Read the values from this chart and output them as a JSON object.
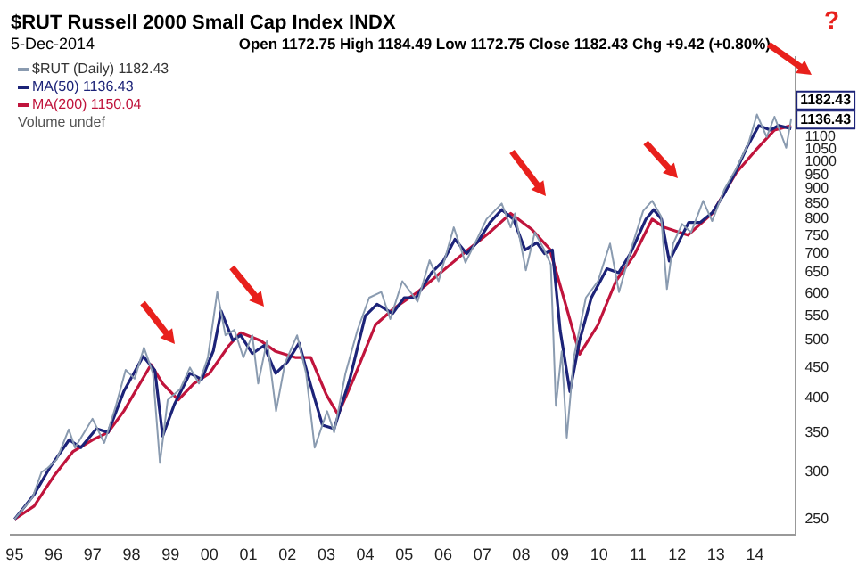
{
  "chart_data": {
    "type": "line",
    "title": "$RUT Russell 2000 Small Cap Index INDX",
    "subtitle": "5-Dec-2014",
    "annotations": [
      "Open 1172.75 High 1184.49 Low 1172.75 Close 1182.43 Chg +9.42 (+0.80%)",
      "?",
      "Volume undef",
      {
        "text": "1182.43",
        "x": 2014.93,
        "y": 1182.43
      },
      {
        "text": "1136.43",
        "x": 2014.93,
        "y": 1136.43
      }
    ],
    "series": [
      {
        "name": "$RUT (Daily) 1182.43",
        "color": "#8a9bb0",
        "x": [
          1995.0,
          1995.46,
          1995.69,
          1995.85,
          1996.08,
          1996.39,
          1996.55,
          1997.0,
          1997.3,
          1997.6,
          1997.85,
          1998.08,
          1998.32,
          1998.55,
          1998.73,
          1998.93,
          1999.25,
          1999.5,
          1999.73,
          1999.96,
          2000.2,
          2000.41,
          2000.64,
          2000.87,
          2001.1,
          2001.25,
          2001.48,
          2001.71,
          2001.94,
          2002.25,
          2002.48,
          2002.7,
          2003.02,
          2003.2,
          2003.49,
          2003.8,
          2004.1,
          2004.41,
          2004.64,
          2004.95,
          2005.34,
          2005.65,
          2005.88,
          2006.27,
          2006.57,
          2006.88,
          2007.11,
          2007.5,
          2007.73,
          2007.84,
          2008.12,
          2008.35,
          2008.58,
          2008.76,
          2008.89,
          2009.04,
          2009.17,
          2009.35,
          2009.66,
          2009.97,
          2010.28,
          2010.51,
          2010.82,
          2011.13,
          2011.36,
          2011.59,
          2011.74,
          2011.9,
          2012.13,
          2012.36,
          2012.67,
          2012.9,
          2013.21,
          2013.52,
          2013.83,
          2014.05,
          2014.3,
          2014.5,
          2014.8,
          2014.93
        ],
        "values": [
          250,
          272,
          300,
          305,
          315,
          354,
          330,
          369,
          336,
          388,
          446,
          431,
          486,
          440,
          311,
          397,
          414,
          450,
          423,
          468,
          603,
          510,
          521,
          468,
          510,
          423,
          500,
          380,
          458,
          510,
          440,
          330,
          380,
          350,
          440,
          521,
          590,
          603,
          543,
          629,
          581,
          682,
          629,
          775,
          676,
          744,
          800,
          850,
          775,
          818,
          656,
          760,
          713,
          671,
          388,
          479,
          343,
          468,
          590,
          629,
          728,
          603,
          713,
          826,
          859,
          809,
          610,
          728,
          785,
          760,
          859,
          794,
          897,
          974,
          1073,
          1200,
          1100,
          1190,
          1055,
          1182.43
        ]
      },
      {
        "name": "MA(50) 1136.43",
        "color": "#1c2378",
        "x": [
          1995.0,
          1995.5,
          1995.9,
          1996.4,
          1996.7,
          1997.1,
          1997.4,
          1997.8,
          1998.3,
          1998.6,
          1998.8,
          1999.1,
          1999.5,
          1999.8,
          2000.1,
          2000.3,
          2000.6,
          2000.8,
          2001.1,
          2001.4,
          2001.7,
          2002.0,
          2002.3,
          2002.6,
          2002.9,
          2003.2,
          2003.6,
          2004.0,
          2004.3,
          2004.7,
          2005.0,
          2005.3,
          2005.7,
          2006.0,
          2006.3,
          2006.6,
          2006.9,
          2007.2,
          2007.5,
          2007.8,
          2008.1,
          2008.4,
          2008.6,
          2008.8,
          2009.0,
          2009.25,
          2009.5,
          2009.8,
          2010.2,
          2010.5,
          2010.8,
          2011.2,
          2011.4,
          2011.6,
          2011.8,
          2012.1,
          2012.3,
          2012.6,
          2012.9,
          2013.2,
          2013.5,
          2013.8,
          2014.1,
          2014.4,
          2014.6,
          2014.93
        ],
        "values": [
          250,
          275,
          305,
          340,
          330,
          355,
          350,
          410,
          470,
          445,
          345,
          390,
          440,
          430,
          480,
          560,
          500,
          510,
          475,
          490,
          440,
          460,
          495,
          420,
          360,
          355,
          430,
          550,
          575,
          555,
          590,
          590,
          650,
          680,
          740,
          700,
          735,
          790,
          830,
          800,
          710,
          730,
          700,
          710,
          520,
          410,
          500,
          590,
          660,
          650,
          700,
          800,
          830,
          800,
          680,
          745,
          790,
          790,
          820,
          880,
          960,
          1060,
          1150,
          1130,
          1150,
          1136.43
        ]
      },
      {
        "name": "MA(200) 1150.04",
        "color": "#c0143c",
        "x": [
          1995.0,
          1995.5,
          1996.0,
          1996.5,
          1997.0,
          1997.4,
          1997.8,
          1998.5,
          1998.8,
          1999.2,
          1999.6,
          2000.0,
          2000.5,
          2000.8,
          2001.3,
          2001.7,
          2002.2,
          2002.6,
          2003.0,
          2003.3,
          2003.7,
          2004.26,
          2004.72,
          2005.34,
          2006.1,
          2006.57,
          2007.19,
          2007.73,
          2008.27,
          2008.73,
          2009.12,
          2009.5,
          2009.97,
          2010.43,
          2010.9,
          2011.36,
          2011.67,
          2012.28,
          2012.9,
          2013.52,
          2014.0,
          2014.5,
          2014.93
        ],
        "values": [
          250,
          263,
          295,
          325,
          340,
          350,
          380,
          455,
          423,
          397,
          423,
          440,
          490,
          515,
          500,
          479,
          468,
          468,
          405,
          375,
          431,
          531,
          565,
          603,
          664,
          705,
          760,
          818,
          769,
          713,
          581,
          474,
          531,
          629,
          696,
          800,
          775,
          752,
          818,
          958,
          1042,
          1130,
          1150.04
        ]
      }
    ],
    "xlim": [
      1994.9,
      2015.05
    ],
    "xticks": [
      {
        "value": 1995,
        "label": "95"
      },
      {
        "value": 1996,
        "label": "96"
      },
      {
        "value": 1997,
        "label": "97"
      },
      {
        "value": 1998,
        "label": "98"
      },
      {
        "value": 1999,
        "label": "99"
      },
      {
        "value": 2000,
        "label": "00"
      },
      {
        "value": 2001,
        "label": "01"
      },
      {
        "value": 2002,
        "label": "02"
      },
      {
        "value": 2003,
        "label": "03"
      },
      {
        "value": 2004,
        "label": "04"
      },
      {
        "value": 2005,
        "label": "05"
      },
      {
        "value": 2006,
        "label": "06"
      },
      {
        "value": 2007,
        "label": "07"
      },
      {
        "value": 2008,
        "label": "08"
      },
      {
        "value": 2009,
        "label": "09"
      },
      {
        "value": 2010,
        "label": "10"
      },
      {
        "value": 2011,
        "label": "11"
      },
      {
        "value": 2012,
        "label": "12"
      },
      {
        "value": 2013,
        "label": "13"
      },
      {
        "value": 2014,
        "label": "14"
      }
    ],
    "ylim": [
      235,
      1500
    ],
    "yticks": [
      250,
      300,
      350,
      400,
      450,
      500,
      550,
      600,
      650,
      700,
      750,
      800,
      850,
      900,
      950,
      1000,
      1050,
      1100
    ],
    "log": true,
    "grid": false,
    "legend": "top left",
    "marker": "none",
    "line_style": "solid"
  }
}
